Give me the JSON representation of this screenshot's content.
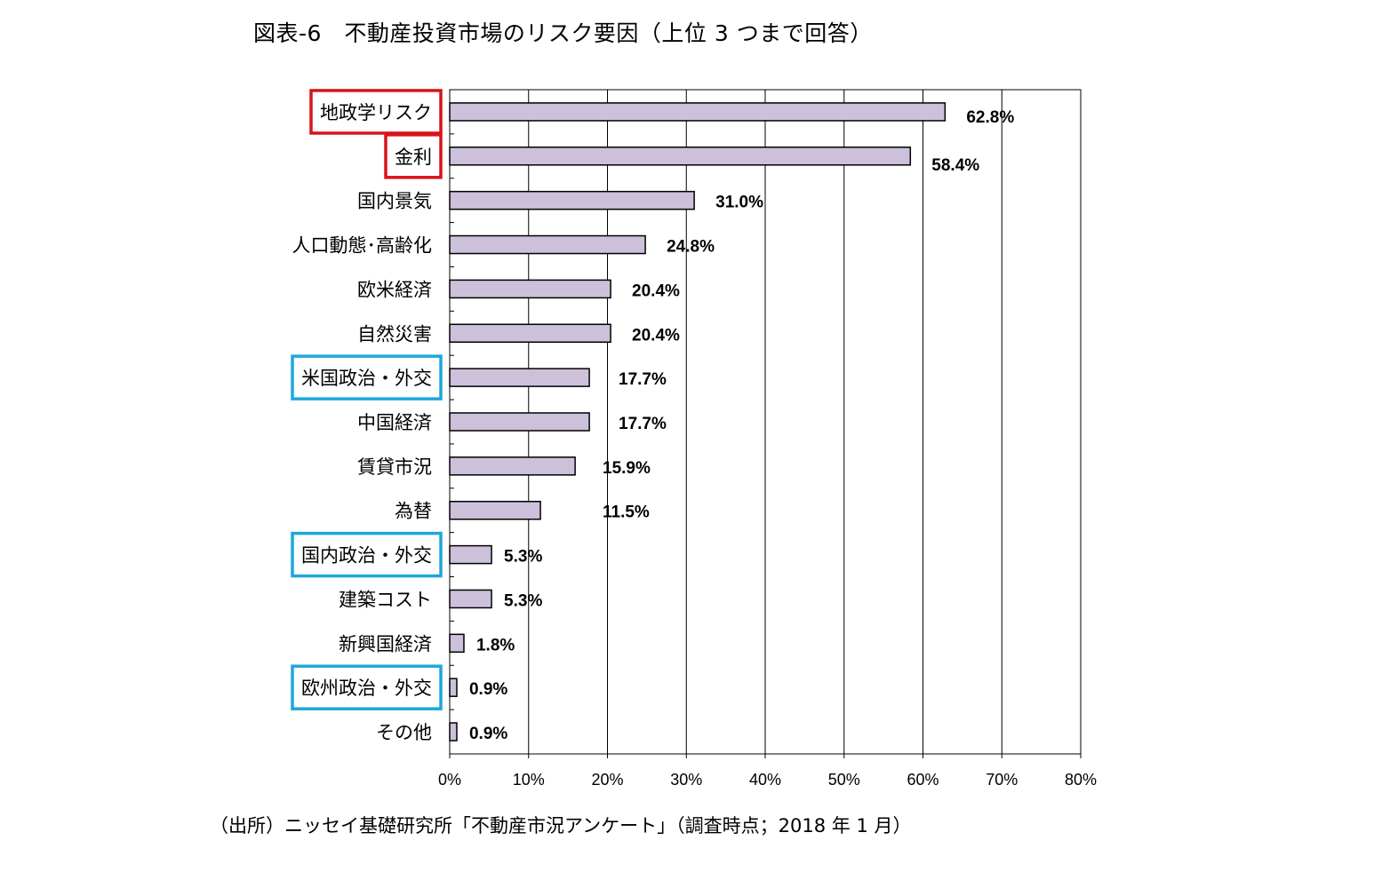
{
  "chart_data": {
    "type": "bar",
    "orientation": "horizontal",
    "title": "図表-6　不動産投資市場のリスク要因（上位 3 つまで回答）",
    "source": "（出所）ニッセイ基礎研究所「不動産市況アンケート」（調査時点；2018 年 1 月）",
    "categories": [
      "地政学リスク",
      "金利",
      "国内景気",
      "人口動態･高齢化",
      "欧米経済",
      "自然災害",
      "米国政治・外交",
      "中国経済",
      "賃貸市況",
      "為替",
      "国内政治・外交",
      "建築コスト",
      "新興国経済",
      "欧州政治・外交",
      "その他"
    ],
    "values": [
      62.8,
      58.4,
      31.0,
      24.8,
      20.4,
      20.4,
      17.7,
      17.7,
      15.9,
      11.5,
      5.3,
      5.3,
      1.8,
      0.9,
      0.9
    ],
    "value_labels": [
      "62.8%",
      "58.4%",
      "31.0%",
      "24.8%",
      "20.4%",
      "20.4%",
      "17.7%",
      "17.7%",
      "15.9%",
      "11.5%",
      "5.3%",
      "5.3%",
      "1.8%",
      "0.9%",
      "0.9%"
    ],
    "highlight": [
      "red",
      "red",
      "none",
      "none",
      "none",
      "none",
      "blue",
      "none",
      "none",
      "none",
      "blue",
      "none",
      "none",
      "blue",
      "none"
    ],
    "xlim": [
      0,
      80
    ],
    "xticks": [
      0,
      10,
      20,
      30,
      40,
      50,
      60,
      70,
      80
    ],
    "xtick_labels": [
      "0%",
      "10%",
      "20%",
      "30%",
      "40%",
      "50%",
      "60%",
      "70%",
      "80%"
    ],
    "grid": "vertical",
    "colors": {
      "bar_fill": "#ccc0da",
      "bar_stroke": "#000000",
      "highlight_red": "#d9141b",
      "highlight_blue": "#1ea7dc",
      "grid": "#000000"
    }
  }
}
